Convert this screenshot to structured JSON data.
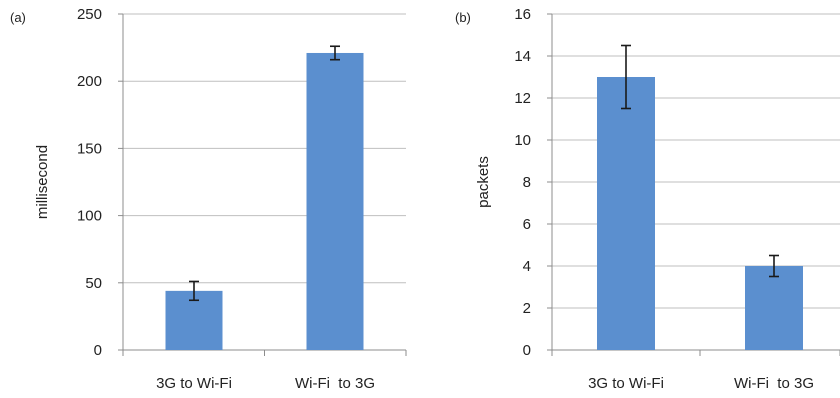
{
  "chart_data": [
    {
      "panel_label": "(a)",
      "type": "bar",
      "categories": [
        "3G to Wi-Fi",
        "Wi-Fi  to 3G"
      ],
      "values": [
        44,
        221
      ],
      "error": [
        7,
        5
      ],
      "ylabel": "millisecond",
      "xlabel": "",
      "ylim": [
        0,
        250
      ],
      "yticks": [
        0,
        50,
        100,
        150,
        200,
        250
      ],
      "grid": true,
      "bar_color": "#5b8fcf"
    },
    {
      "panel_label": "(b)",
      "type": "bar",
      "categories": [
        "3G to Wi-Fi",
        "Wi-Fi  to 3G"
      ],
      "values": [
        13,
        4
      ],
      "error": [
        1.5,
        0.5
      ],
      "ylabel": "packets",
      "xlabel": "",
      "ylim": [
        0,
        16
      ],
      "yticks": [
        0,
        2,
        4,
        6,
        8,
        10,
        12,
        14,
        16
      ],
      "grid": true,
      "bar_color": "#5b8fcf"
    }
  ]
}
